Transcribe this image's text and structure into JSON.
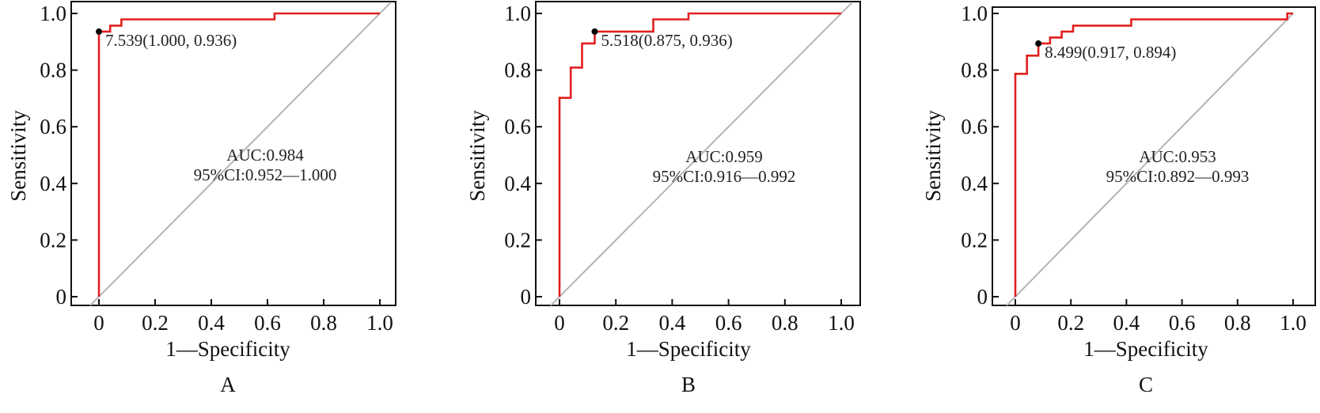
{
  "figure": {
    "panel_labels": [
      "A",
      "B",
      "C"
    ]
  },
  "chart_data": [
    {
      "type": "line",
      "panel": "A",
      "xlabel": "1—Specificity",
      "ylabel": "Sensitivity",
      "xlim": [
        0,
        1
      ],
      "ylim": [
        0,
        1
      ],
      "xticks": [
        "0",
        "0.2",
        "0.4",
        "0.6",
        "0.8",
        "1.0"
      ],
      "yticks": [
        "0",
        "0.2",
        "0.4",
        "0.6",
        "0.8",
        "1.0"
      ],
      "roc": [
        [
          0,
          0
        ],
        [
          0,
          0.936
        ],
        [
          0.04,
          0.936
        ],
        [
          0.04,
          0.957
        ],
        [
          0.08,
          0.957
        ],
        [
          0.08,
          0.979
        ],
        [
          0.625,
          0.979
        ],
        [
          0.625,
          1.0
        ],
        [
          1.0,
          1.0
        ]
      ],
      "reference_line": [
        [
          -0.04,
          -0.04
        ],
        [
          1.04,
          1.04
        ]
      ],
      "cutoff_point": {
        "x": 0,
        "y": 0.936
      },
      "cutoff_label": "7.539(1.000, 0.936)",
      "auc_text": "AUC:0.984",
      "ci_text": "95%CI:0.952—1.000",
      "colors": {
        "roc": "#e0201e",
        "reference": "#b4b4b4",
        "point": "#000000"
      }
    },
    {
      "type": "line",
      "panel": "B",
      "xlabel": "1—Specificity",
      "ylabel": "Sensitivity",
      "xlim": [
        0,
        1
      ],
      "ylim": [
        0,
        1
      ],
      "xticks": [
        "0",
        "0.2",
        "0.4",
        "0.6",
        "0.8",
        "1.0"
      ],
      "yticks": [
        "0",
        "0.2",
        "0.4",
        "0.6",
        "0.8",
        "1.0"
      ],
      "roc": [
        [
          0,
          0
        ],
        [
          0,
          0.702
        ],
        [
          0.04,
          0.702
        ],
        [
          0.04,
          0.809
        ],
        [
          0.08,
          0.809
        ],
        [
          0.08,
          0.894
        ],
        [
          0.125,
          0.894
        ],
        [
          0.125,
          0.936
        ],
        [
          0.333,
          0.936
        ],
        [
          0.333,
          0.979
        ],
        [
          0.458,
          0.979
        ],
        [
          0.458,
          1.0
        ],
        [
          1.0,
          1.0
        ]
      ],
      "reference_line": [
        [
          -0.04,
          -0.04
        ],
        [
          1.04,
          1.04
        ]
      ],
      "cutoff_point": {
        "x": 0.125,
        "y": 0.936
      },
      "cutoff_label": "5.518(0.875, 0.936)",
      "auc_text": "AUC:0.959",
      "ci_text": "95%CI:0.916—0.992",
      "colors": {
        "roc": "#e0201e",
        "reference": "#b4b4b4",
        "point": "#000000"
      }
    },
    {
      "type": "line",
      "panel": "C",
      "xlabel": "1—Specificity",
      "ylabel": "Sensitivity",
      "xlim": [
        0,
        1
      ],
      "ylim": [
        0,
        1
      ],
      "xticks": [
        "0",
        "0.2",
        "0.4",
        "0.6",
        "0.8",
        "1.0"
      ],
      "yticks": [
        "0",
        "0.2",
        "0.4",
        "0.6",
        "0.8",
        "1.0"
      ],
      "roc": [
        [
          0,
          0
        ],
        [
          0,
          0.787
        ],
        [
          0.042,
          0.787
        ],
        [
          0.042,
          0.851
        ],
        [
          0.083,
          0.851
        ],
        [
          0.083,
          0.894
        ],
        [
          0.125,
          0.894
        ],
        [
          0.125,
          0.915
        ],
        [
          0.167,
          0.915
        ],
        [
          0.167,
          0.936
        ],
        [
          0.208,
          0.936
        ],
        [
          0.208,
          0.957
        ],
        [
          0.417,
          0.957
        ],
        [
          0.417,
          0.979
        ],
        [
          0.979,
          0.979
        ],
        [
          0.979,
          1.0
        ],
        [
          1.0,
          1.0
        ]
      ],
      "reference_line": [
        [
          -0.04,
          -0.04
        ],
        [
          1.0,
          1.0
        ]
      ],
      "cutoff_point": {
        "x": 0.083,
        "y": 0.894
      },
      "cutoff_label": "8.499(0.917, 0.894)",
      "auc_text": "AUC:0.953",
      "ci_text": "95%CI:0.892—0.993",
      "colors": {
        "roc": "#e0201e",
        "reference": "#b4b4b4",
        "point": "#000000"
      }
    }
  ]
}
